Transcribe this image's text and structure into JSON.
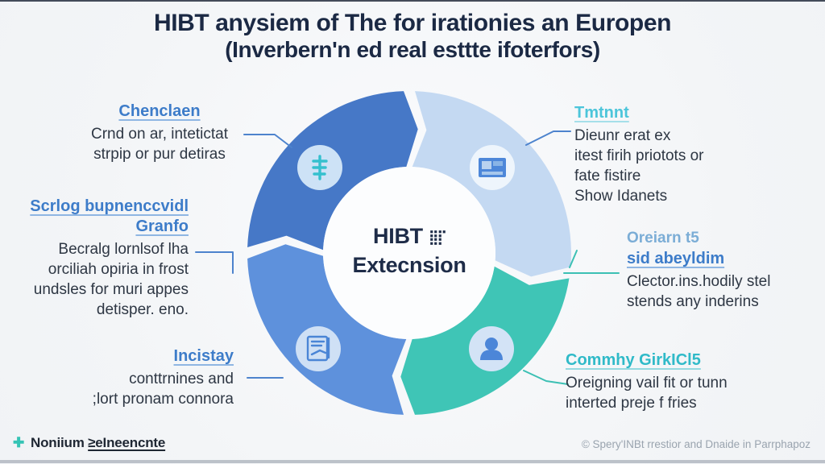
{
  "title": {
    "line1": "HIBT anysiem of The for irationies an Europen",
    "line2": "(Inverbern'n ed real esttte ifoterfors)"
  },
  "colors": {
    "background": "#f3f5f7",
    "title_text": "#1b2944",
    "body_text": "#2e3744",
    "heading_blue": "#3d7cc9",
    "heading_cyan": "#4cc5da",
    "heading_teal": "#2fbac8",
    "pre_heading_blue": "#7badd6",
    "connector_blue": "#4d83cd",
    "connector_teal": "#3cc0b4",
    "footer_right_text": "#9aa4af",
    "plus_icon": "#35c4b5"
  },
  "diagram": {
    "center": {
      "line1": "HIBT",
      "suffix_glyphs": "⣿⡏",
      "line2": "Extecnsion"
    },
    "segments": [
      {
        "position": "top-left",
        "color": "#4678c7",
        "start": 270,
        "end": 360,
        "icon": "finance-icon"
      },
      {
        "position": "top-right",
        "color": "#c4d9f2",
        "start": 0,
        "end": 97,
        "icon": "image-icon"
      },
      {
        "position": "bottom-right",
        "color": "#3fc5b6",
        "start": 97,
        "end": 180,
        "icon": "person-icon"
      },
      {
        "position": "bottom-left",
        "color": "#5e91dc",
        "start": 180,
        "end": 270,
        "icon": "report-icon"
      }
    ]
  },
  "labels": {
    "top_left": {
      "heading": "Chenclaen",
      "line1": "Crnd on ar, intetictat",
      "line2": "strpip or pur detiras"
    },
    "top_right": {
      "heading": "Tmtnnt",
      "line1": "Dieunr erat ex",
      "line2": "itest firih priotots or",
      "line3": "fate fistire",
      "line4": "Show Idanets"
    },
    "mid_left": {
      "heading": "Scrlog bupnenccvidl Granfo",
      "line1": "Becralg lornlsof lha",
      "line2": "orciliah opiria in frost",
      "line3": "undsles for muri appes",
      "line4": "detisper. eno."
    },
    "mid_right": {
      "pre_heading": "Oreiarn t5",
      "heading": "sid abeyldim",
      "line1": "Clector.ins.hodily stel",
      "line2": "stends any inderins"
    },
    "bottom_left": {
      "heading": "Incistay",
      "line1": "conttrnines and",
      "line2": ";lort pronam connora"
    },
    "bottom_right": {
      "heading": "Commhy GirkICl5",
      "line1": "Oreigning vail fit or tunn",
      "line2": "interted preje f fries"
    }
  },
  "footer": {
    "left_a": "Noniium ",
    "left_b": "≥eIneencnte",
    "right": "© Spery'INBt rrestior and Dnaide in Parrphapoz"
  }
}
